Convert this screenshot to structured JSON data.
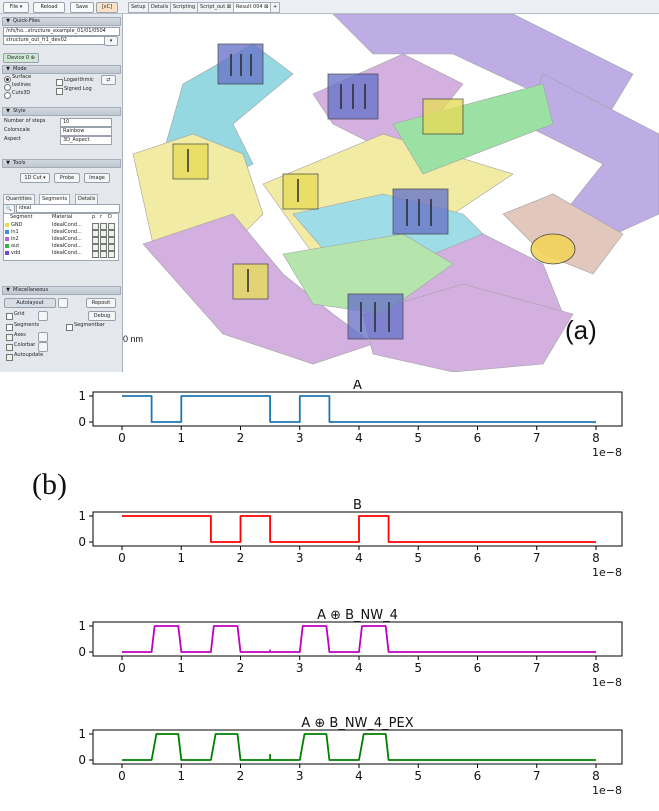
{
  "toolbar": {
    "buttons": [
      "File ▾",
      "Reload",
      "Save",
      "[εC]"
    ],
    "tabs": [
      "Setup",
      "Details",
      "Scripting",
      "Script_out ⊠",
      "Result 004 ⊠",
      "+"
    ]
  },
  "panel": {
    "quickfiles_title": "Quick-Files",
    "file1": "/nfs/ho...structure_example_01/01/0504",
    "file2": "structure_out_fr1_dev02",
    "device_tab": "Device 0 ⊕",
    "mode_title": "Mode",
    "mode_options": [
      "Surface",
      "Isolines",
      "Cuts3D"
    ],
    "logarithmic": "Logarithmic",
    "signed_log": "Signed Log",
    "style_title": "Style",
    "steps_label": "Number of steps",
    "steps_value": "10",
    "colorscale_label": "Colorscale",
    "colorscale_value": "Rainbow",
    "aspect_label": "Aspect",
    "aspect_value": "3D_Aspect",
    "tools_title": "Tools",
    "tool_buttons": [
      "1D Cut ▾",
      "Probe",
      "Image"
    ],
    "sub_tabs": [
      "Quantities",
      "Segments",
      "Details"
    ],
    "filter_value": "ideal",
    "table_headers": [
      "Segment",
      "Material",
      "p",
      "r",
      "D"
    ],
    "segments": [
      {
        "name": "GND",
        "material": "IdealCond...",
        "color": "#e6e04a"
      },
      {
        "name": "in1",
        "material": "IdealCond...",
        "color": "#3f8fd8"
      },
      {
        "name": "in2",
        "material": "IdealCond...",
        "color": "#b06ad8"
      },
      {
        "name": "out",
        "material": "IdealCond...",
        "color": "#2fb34a"
      },
      {
        "name": "vdd",
        "material": "IdealCond...",
        "color": "#6a4ad8"
      }
    ],
    "misc_title": "Miscellaneous",
    "autolayout": "Autolayout",
    "reposit": "Reposit",
    "grid": "Grid",
    "debug": "Debug",
    "segments_chk": "Segments",
    "segmentbar": "Segmentbar",
    "axes": "Axes",
    "colorbar": "Colorbar",
    "autoupdate": "Autoupdate"
  },
  "viewport": {
    "label": "(a)",
    "scale_text": "0 nm"
  },
  "figure_label_b": "(b)",
  "chart_data": [
    {
      "type": "line",
      "title": "A",
      "color": "#1f77b4",
      "x_scale": "1e−8",
      "xlim": [
        0,
        8
      ],
      "ylim": [
        0,
        1
      ],
      "xticks": [
        "0",
        "1",
        "2",
        "3",
        "4",
        "5",
        "6",
        "7",
        "8"
      ],
      "yticks": [
        "0",
        "1"
      ],
      "x": [
        0,
        0.5,
        0.5,
        1,
        1,
        2.5,
        2.5,
        3,
        3,
        3.5,
        3.5,
        8
      ],
      "y": [
        1,
        1,
        0,
        0,
        1,
        1,
        0,
        0,
        1,
        1,
        0,
        0
      ]
    },
    {
      "type": "line",
      "title": "B",
      "color": "#ff0000",
      "x_scale": "1e−8",
      "xlim": [
        0,
        8
      ],
      "ylim": [
        0,
        1
      ],
      "xticks": [
        "0",
        "1",
        "2",
        "3",
        "4",
        "5",
        "6",
        "7",
        "8"
      ],
      "yticks": [
        "0",
        "1"
      ],
      "x": [
        0,
        1.5,
        1.5,
        2,
        2,
        2.5,
        2.5,
        4,
        4,
        4.5,
        4.5,
        8
      ],
      "y": [
        1,
        1,
        0,
        0,
        1,
        1,
        0,
        0,
        1,
        1,
        0,
        0
      ]
    },
    {
      "type": "line",
      "title": "A ⊕ B_NW_4",
      "color": "#bf00bf",
      "x_scale": "1e−8",
      "xlim": [
        0,
        8
      ],
      "ylim": [
        0,
        1
      ],
      "xticks": [
        "0",
        "1",
        "2",
        "3",
        "4",
        "5",
        "6",
        "7",
        "8"
      ],
      "yticks": [
        "0",
        "1"
      ],
      "x": [
        0,
        0.5,
        0.55,
        0.95,
        1.0,
        1.5,
        1.55,
        1.95,
        2.0,
        2.5,
        2.5,
        2.5,
        3.0,
        3.05,
        3.45,
        3.5,
        4.0,
        4.05,
        4.45,
        4.5,
        8
      ],
      "y": [
        0,
        0,
        1,
        1,
        0,
        0,
        1,
        1,
        0,
        0,
        0.06,
        0,
        0,
        1,
        1,
        0,
        0,
        1,
        1,
        0,
        0
      ]
    },
    {
      "type": "line",
      "title": "A ⊕ B_NW_4_PEX",
      "color": "#007f00",
      "x_scale": "1e−8",
      "xlim": [
        0,
        8
      ],
      "ylim": [
        0,
        1
      ],
      "xticks": [
        "0",
        "1",
        "2",
        "3",
        "4",
        "5",
        "6",
        "7",
        "8"
      ],
      "yticks": [
        "0",
        "1"
      ],
      "x": [
        0,
        0.5,
        0.58,
        0.95,
        1.0,
        1.5,
        1.58,
        1.95,
        2.0,
        2.5,
        2.5,
        2.5,
        3.0,
        3.08,
        3.45,
        3.5,
        4.0,
        4.08,
        4.45,
        4.5,
        8
      ],
      "y": [
        0,
        0,
        1,
        1,
        0,
        0,
        1,
        1,
        0,
        0,
        0.2,
        0,
        0,
        1,
        1,
        0,
        0,
        1,
        1,
        0,
        0
      ]
    }
  ]
}
